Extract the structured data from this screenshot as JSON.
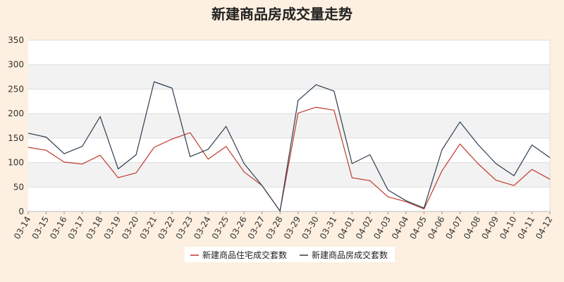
{
  "title": "新建商品房成交量走势",
  "colors": {
    "background": "#fdf0e0",
    "plot_background": "#ffffff",
    "band": "#f2f2f2",
    "grid": "#dddddd",
    "series_residential": "#c0392b",
    "series_total": "#2c3e50"
  },
  "chart_data": {
    "type": "line",
    "x": [
      "03-14",
      "03-15",
      "03-16",
      "03-17",
      "03-18",
      "03-19",
      "03-20",
      "03-21",
      "03-22",
      "03-23",
      "03-24",
      "03-25",
      "03-26",
      "03-27",
      "03-28",
      "03-29",
      "03-30",
      "03-31",
      "04-01",
      "04-02",
      "04-03",
      "04-04",
      "04-05",
      "04-06",
      "04-07",
      "04-08",
      "04-09",
      "04-10",
      "04-11",
      "04-12"
    ],
    "ylim": [
      0,
      350
    ],
    "yticks": [
      0,
      50,
      100,
      150,
      200,
      250,
      300,
      350
    ],
    "grid": true,
    "alternating_bands": true,
    "legend_position": "bottom-center",
    "series": [
      {
        "name": "新建商品住宅成交套数",
        "color": "#c0392b",
        "values": [
          131,
          125,
          101,
          97,
          115,
          69,
          79,
          131,
          148,
          161,
          107,
          133,
          81,
          53,
          1,
          201,
          213,
          207,
          69,
          63,
          30,
          20,
          5,
          83,
          138,
          98,
          64,
          53,
          86,
          66
        ]
      },
      {
        "name": "新建商品房成交套数",
        "color": "#2c3e50",
        "values": [
          160,
          152,
          118,
          133,
          194,
          87,
          116,
          265,
          252,
          112,
          127,
          174,
          98,
          53,
          1,
          227,
          259,
          246,
          98,
          116,
          44,
          22,
          7,
          126,
          183,
          137,
          98,
          73,
          136,
          110
        ]
      }
    ]
  }
}
